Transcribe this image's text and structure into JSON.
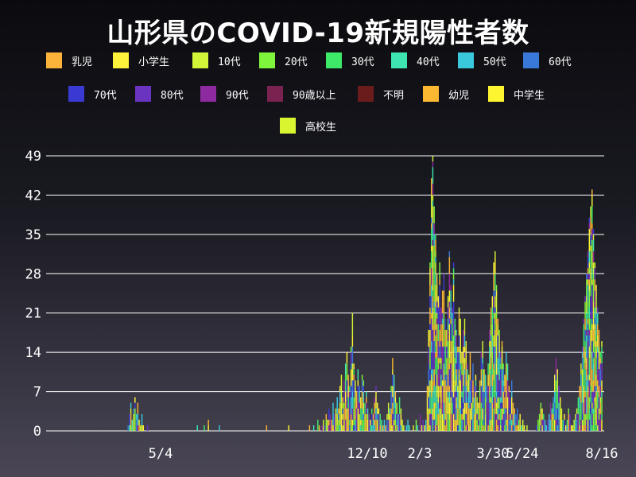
{
  "page": {
    "title": "山形県のCOVID-19新規陽性者数"
  },
  "legend": {
    "items": [
      {
        "label": "乳児",
        "color": "#fbb33a"
      },
      {
        "label": "小学生",
        "color": "#fdf23b"
      },
      {
        "label": "10代",
        "color": "#d2f53a"
      },
      {
        "label": "20代",
        "color": "#7ef53a"
      },
      {
        "label": "30代",
        "color": "#3ee96a"
      },
      {
        "label": "40代",
        "color": "#3ee5b0"
      },
      {
        "label": "50代",
        "color": "#3ac8dc"
      },
      {
        "label": "60代",
        "color": "#3a78d8"
      },
      {
        "label": "70代",
        "color": "#3a3ad2"
      },
      {
        "label": "80代",
        "color": "#6a34c0"
      },
      {
        "label": "90代",
        "color": "#8e2aa0"
      },
      {
        "label": "90歳以上",
        "color": "#7a2250"
      },
      {
        "label": "不明",
        "color": "#6a1c1c"
      },
      {
        "label": "幼児",
        "color": "#fbb830"
      },
      {
        "label": "中学生",
        "color": "#fdf530"
      },
      {
        "label": "高校生",
        "color": "#d8f530"
      }
    ]
  },
  "chart_data": {
    "type": "bar",
    "stacked": true,
    "title": "山形県のCOVID-19新規陽性者数",
    "xlabel": "",
    "ylabel": "",
    "ylim": [
      0,
      49
    ],
    "y_ticks": [
      0,
      7,
      14,
      21,
      28,
      35,
      42,
      49
    ],
    "x_tick_labels": [
      "5/4",
      "12/10",
      "2/3",
      "3/30",
      "5/24",
      "8/16"
    ],
    "grid": "horizontal",
    "daily_totals": [
      0,
      0,
      0,
      0,
      0,
      0,
      0,
      0,
      0,
      0,
      0,
      0,
      0,
      0,
      0,
      0,
      0,
      0,
      0,
      0,
      0,
      0,
      0,
      0,
      0,
      0,
      0,
      0,
      0,
      0,
      0,
      0,
      0,
      0,
      0,
      0,
      0,
      0,
      0,
      0,
      0,
      0,
      0,
      0,
      0,
      1,
      3,
      5,
      2,
      4,
      6,
      3,
      5,
      2,
      1,
      3,
      1,
      0,
      0,
      1,
      0,
      0,
      0,
      0,
      0,
      0,
      0,
      0,
      0,
      0,
      0,
      0,
      0,
      0,
      0,
      0,
      0,
      0,
      0,
      0,
      0,
      0,
      0,
      0,
      0,
      0,
      0,
      0,
      0,
      0,
      0,
      0,
      0,
      0,
      0,
      1,
      0,
      0,
      0,
      0,
      1,
      0,
      0,
      2,
      0,
      0,
      0,
      0,
      0,
      0,
      0,
      1,
      0,
      0,
      0,
      0,
      0,
      0,
      0,
      0,
      0,
      0,
      0,
      0,
      0,
      0,
      0,
      0,
      0,
      0,
      0,
      0,
      0,
      0,
      0,
      0,
      0,
      0,
      0,
      0,
      0,
      0,
      0,
      0,
      0,
      1,
      0,
      0,
      0,
      0,
      0,
      0,
      0,
      0,
      0,
      0,
      0,
      0,
      0,
      0,
      0,
      1,
      0,
      0,
      0,
      0,
      0,
      0,
      0,
      0,
      0,
      0,
      0,
      0,
      0,
      0,
      1,
      0,
      0,
      1,
      0,
      0,
      2,
      1,
      0,
      1,
      2,
      1,
      3,
      2,
      4,
      3,
      2,
      5,
      3,
      4,
      6,
      4,
      8,
      10,
      6,
      9,
      12,
      14,
      10,
      8,
      15,
      21,
      12,
      9,
      7,
      11,
      8,
      6,
      10,
      9,
      5,
      7,
      4,
      3,
      2,
      4,
      3,
      6,
      8,
      5,
      4,
      3,
      2,
      1,
      2,
      1,
      3,
      5,
      4,
      8,
      13,
      10,
      7,
      5,
      3,
      6,
      4,
      2,
      1,
      0,
      1,
      2,
      1,
      0,
      0,
      1,
      0,
      2,
      1,
      0,
      3,
      1,
      2,
      1,
      2,
      8,
      18,
      30,
      45,
      49,
      40,
      35,
      28,
      24,
      30,
      22,
      25,
      28,
      20,
      18,
      24,
      32,
      26,
      22,
      30,
      20,
      18,
      15,
      22,
      20,
      14,
      18,
      20,
      16,
      12,
      10,
      14,
      9,
      12,
      8,
      10,
      6,
      5,
      9,
      14,
      16,
      11,
      10,
      8,
      12,
      18,
      22,
      24,
      30,
      32,
      26,
      20,
      18,
      14,
      16,
      12,
      10,
      14,
      12,
      8,
      6,
      9,
      5,
      4,
      3,
      4,
      2,
      3,
      1,
      2,
      1,
      0,
      1,
      0,
      0,
      0,
      0,
      0,
      0,
      1,
      2,
      3,
      5,
      4,
      3,
      2,
      1,
      2,
      3,
      5,
      4,
      6,
      10,
      13,
      11,
      8,
      6,
      4,
      2,
      3,
      1,
      2,
      4,
      3,
      1,
      1,
      2,
      3,
      4,
      6,
      8,
      12,
      15,
      20,
      24,
      28,
      32,
      38,
      40,
      43,
      36,
      30,
      26,
      22,
      18,
      14,
      16
    ],
    "series_order": [
      "乳児",
      "小学生",
      "10代",
      "20代",
      "30代",
      "40代",
      "50代",
      "60代",
      "70代",
      "80代",
      "90代",
      "90歳以上",
      "不明",
      "幼児",
      "中学生",
      "高校生"
    ]
  }
}
